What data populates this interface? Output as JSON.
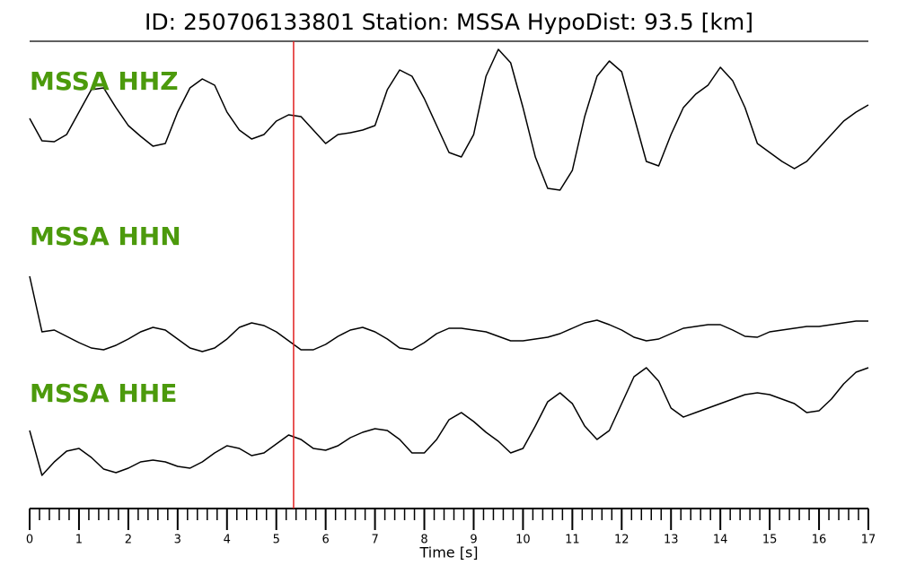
{
  "chart_data": {
    "type": "line",
    "title": "ID: 250706133801   Station: MSSA   HypoDist:    93.5 [km]",
    "xlabel": "Time [s]",
    "xlim": [
      0,
      17
    ],
    "xticks": [
      0,
      1,
      2,
      3,
      4,
      5,
      6,
      7,
      8,
      9,
      10,
      11,
      12,
      13,
      14,
      15,
      16,
      17
    ],
    "xminor_step": 0.2,
    "ylim": [
      -9,
      9
    ],
    "label_color": "#4c9a0c",
    "pick_x": 5.35,
    "pick_color": "#e02020",
    "x": [
      0,
      0.25,
      0.5,
      0.75,
      1,
      1.25,
      1.5,
      1.75,
      2,
      2.25,
      2.5,
      2.75,
      3,
      3.25,
      3.5,
      3.75,
      4,
      4.25,
      4.5,
      4.75,
      5,
      5.25,
      5.5,
      5.75,
      6,
      6.25,
      6.5,
      6.75,
      7,
      7.25,
      7.5,
      7.75,
      8,
      8.25,
      8.5,
      8.75,
      9,
      9.25,
      9.5,
      9.75,
      10,
      10.25,
      10.5,
      10.75,
      11,
      11.25,
      11.5,
      11.75,
      12,
      12.25,
      12.5,
      12.75,
      13,
      13.25,
      13.5,
      13.75,
      14,
      14.25,
      14.5,
      14.75,
      15,
      15.25,
      15.5,
      15.75,
      16,
      16.25,
      16.5,
      16.75,
      17
    ],
    "series": [
      {
        "name": "MSSA HHZ",
        "color": "#000000",
        "values": [
          0.8,
          -1.7,
          -1.8,
          -1,
          1.5,
          4,
          4.2,
          2,
          0,
          -1.2,
          -2.3,
          -2,
          1.5,
          4.2,
          5.2,
          4.5,
          1.5,
          -0.5,
          -1.5,
          -1,
          0.5,
          1.2,
          1,
          -0.5,
          -2,
          -1,
          -0.8,
          -0.5,
          0,
          4,
          6.2,
          5.5,
          3,
          0,
          -3,
          -3.5,
          -1,
          5.5,
          8.5,
          7,
          2,
          -3.5,
          -7,
          -7.2,
          -5,
          1,
          5.5,
          7.2,
          6,
          1,
          -4,
          -4.5,
          -1,
          2,
          3.5,
          4.5,
          6.5,
          5,
          2,
          -2,
          -3,
          -4,
          -4.8,
          -4,
          -2.5,
          -1,
          0.5,
          1.5,
          2.3
        ]
      },
      {
        "name": "MSSA HHN",
        "color": "#000000",
        "values": [
          6.7,
          0.5,
          0.7,
          0,
          -0.7,
          -1.3,
          -1.5,
          -1,
          -0.3,
          0.5,
          1,
          0.7,
          -0.3,
          -1.3,
          -1.7,
          -1.3,
          -0.3,
          1,
          1.5,
          1.2,
          0.5,
          -0.5,
          -1.5,
          -1.5,
          -0.9,
          0,
          0.7,
          1,
          0.5,
          -0.3,
          -1.3,
          -1.5,
          -0.7,
          0.3,
          0.9,
          0.9,
          0.7,
          0.5,
          0,
          -0.5,
          -0.5,
          -0.3,
          -0.1,
          0.3,
          0.9,
          1.5,
          1.8,
          1.3,
          0.7,
          -0.1,
          -0.5,
          -0.3,
          0.3,
          0.9,
          1.1,
          1.3,
          1.3,
          0.7,
          0,
          -0.1,
          0.5,
          0.7,
          0.9,
          1.1,
          1.1,
          1.3,
          1.5,
          1.7,
          1.7
        ]
      },
      {
        "name": "MSSA HHE",
        "color": "#000000",
        "values": [
          0,
          -5,
          -3.5,
          -2.3,
          -2,
          -3,
          -4.3,
          -4.7,
          -4.2,
          -3.5,
          -3.3,
          -3.5,
          -4,
          -4.2,
          -3.5,
          -2.5,
          -1.7,
          -2,
          -2.8,
          -2.5,
          -1.5,
          -0.5,
          -1,
          -2,
          -2.2,
          -1.7,
          -0.8,
          -0.2,
          0.2,
          0,
          -1,
          -2.5,
          -2.5,
          -1,
          1.2,
          2,
          1,
          -0.2,
          -1.2,
          -2.5,
          -2,
          0.5,
          3.2,
          4.2,
          3,
          0.5,
          -1,
          0,
          3,
          6,
          7,
          5.5,
          2.5,
          1.5,
          2,
          2.5,
          3,
          3.5,
          4,
          4.2,
          4,
          3.5,
          3,
          2,
          2.2,
          3.5,
          5.2,
          6.5,
          7
        ]
      }
    ]
  }
}
